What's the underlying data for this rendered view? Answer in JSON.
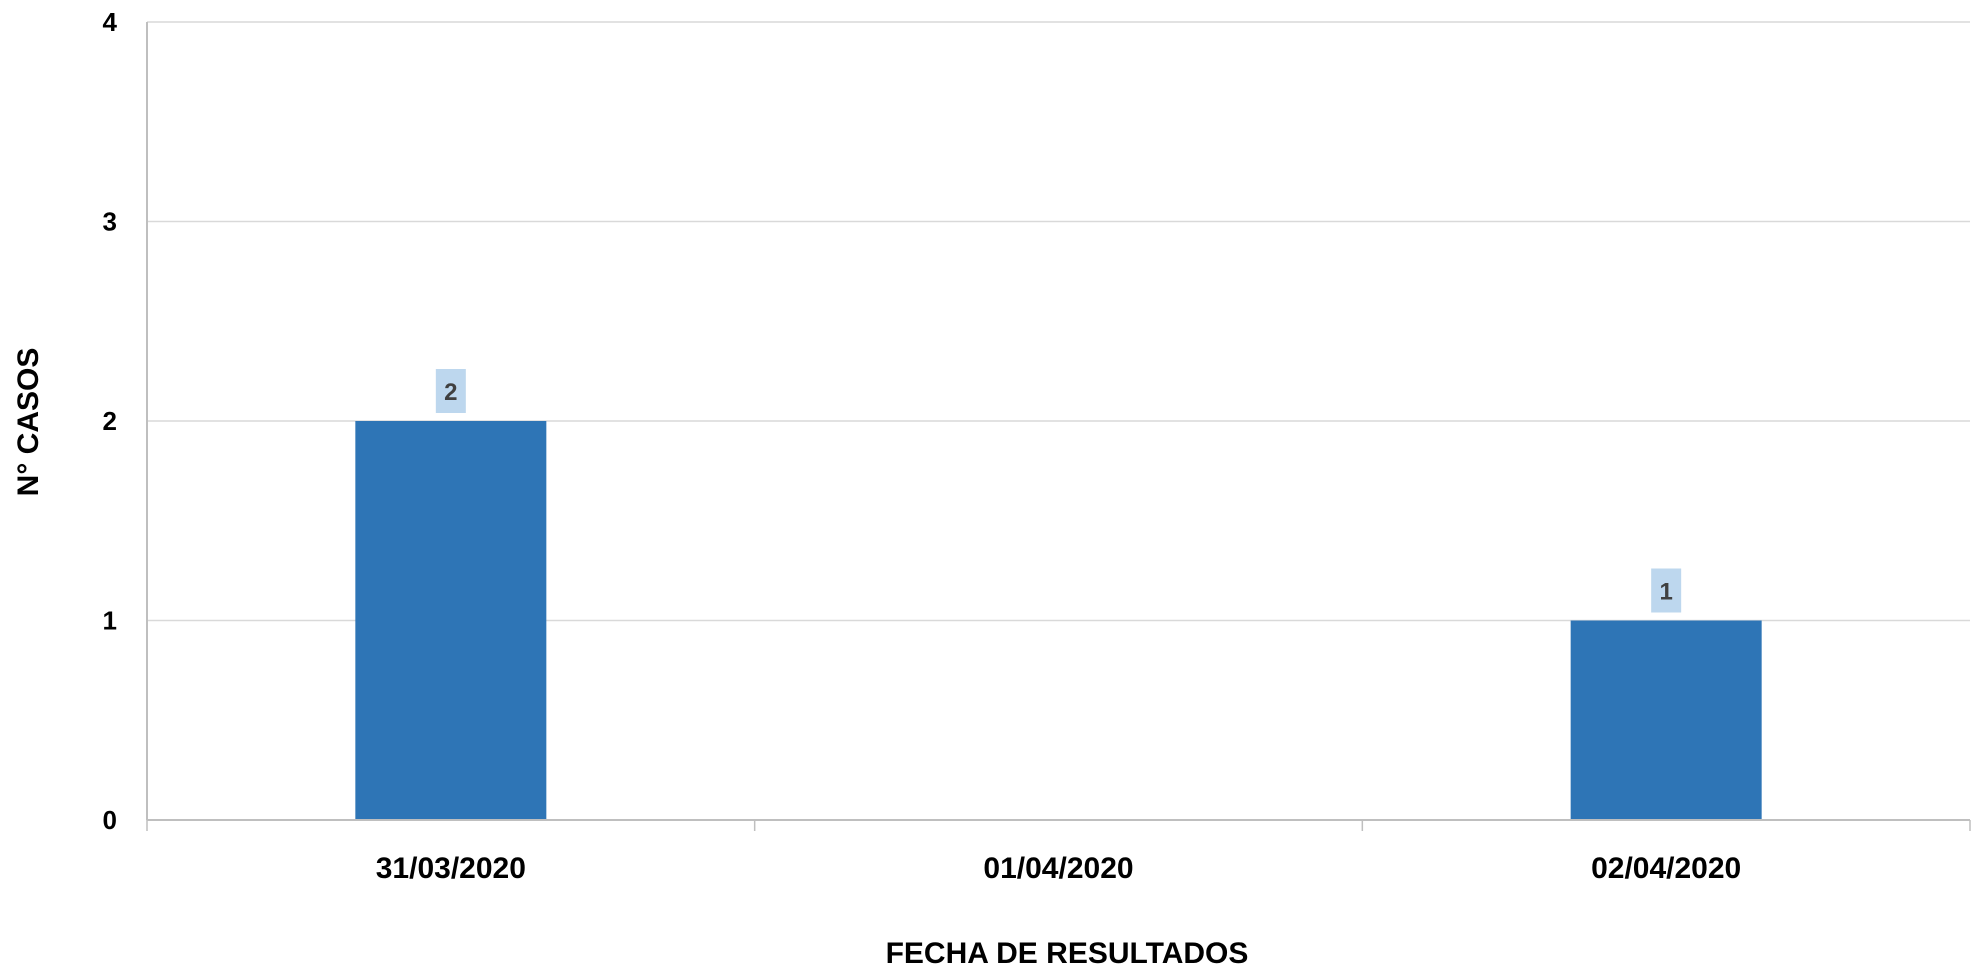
{
  "chart_data": {
    "type": "bar",
    "categories": [
      "31/03/2020",
      "01/04/2020",
      "02/04/2020"
    ],
    "series": [
      {
        "values": [
          2,
          0,
          1
        ],
        "data_labels": [
          "2",
          "",
          "1"
        ]
      }
    ],
    "title": "",
    "xlabel": "FECHA DE RESULTADOS",
    "ylabel": "N° CASOS",
    "ylim": [
      0,
      4
    ],
    "yticks": [
      0,
      1,
      2,
      3,
      4
    ],
    "grid": true,
    "legend": "none",
    "colors": {
      "bar": "#2E75B6",
      "data_label_bg": "#BDD7EE",
      "gridline": "#D9D9D9",
      "axis": "#BFBFBF"
    }
  }
}
